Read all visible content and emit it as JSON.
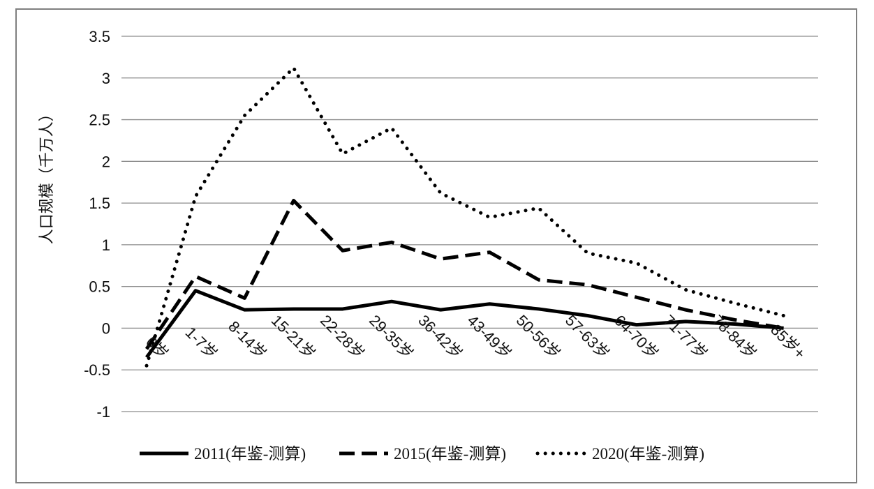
{
  "chart_data": {
    "type": "line",
    "title": "",
    "xlabel": "",
    "ylabel": "人口规模（千万人）",
    "ylim": [
      -1,
      3.5
    ],
    "yticks": [
      -1,
      -0.5,
      0,
      0.5,
      1,
      1.5,
      2,
      2.5,
      3,
      3.5
    ],
    "ytick_labels": [
      "-1",
      "-0.5",
      "0",
      "0.5",
      "1",
      "1.5",
      "2",
      "2.5",
      "3",
      "3.5"
    ],
    "grid": true,
    "legend_position": "bottom",
    "categories": [
      "0岁",
      "1-7岁",
      "8-14岁",
      "15-21岁",
      "22-28岁",
      "29-35岁",
      "36-42岁",
      "43-49岁",
      "50-56岁",
      "57-63岁",
      "64-70岁",
      "71-77岁",
      "78-84岁",
      "85岁+"
    ],
    "series": [
      {
        "name": "2011(年鉴-测算)",
        "style": "solid",
        "color": "#000000",
        "values": [
          -0.35,
          0.45,
          0.22,
          0.23,
          0.23,
          0.32,
          0.22,
          0.29,
          0.23,
          0.15,
          0.04,
          0.08,
          0.05,
          0.0
        ]
      },
      {
        "name": "2015(年鉴-测算)",
        "style": "dashed",
        "color": "#000000",
        "values": [
          -0.25,
          0.62,
          0.36,
          1.53,
          0.93,
          1.03,
          0.83,
          0.91,
          0.58,
          0.52,
          0.37,
          0.22,
          0.1,
          0.0
        ]
      },
      {
        "name": "2020(年鉴-测算)",
        "style": "dotted",
        "color": "#000000",
        "values": [
          -0.45,
          1.58,
          2.55,
          3.12,
          2.09,
          2.4,
          1.62,
          1.33,
          1.44,
          0.9,
          0.78,
          0.46,
          0.3,
          0.15
        ]
      }
    ]
  }
}
